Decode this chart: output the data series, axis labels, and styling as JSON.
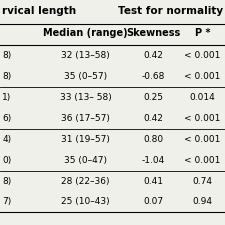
{
  "title_left": "rvical length",
  "title_right": "Test for normality",
  "col_headers": [
    "Median (range)",
    "Skewness",
    "P *"
  ],
  "left_col_partial": [
    "8)",
    "8)",
    "1)",
    "6)",
    "4)",
    "0)",
    "8)",
    "7)"
  ],
  "rows": [
    [
      "32 (13–58)",
      "0.42",
      "< 0.001"
    ],
    [
      "35 (0–57)",
      "-0.68",
      "< 0.001"
    ],
    [
      "33 (13– 58)",
      "0.25",
      "0.014"
    ],
    [
      "36 (17–57)",
      "0.42",
      "< 0.001"
    ],
    [
      "31 (19–57)",
      "0.80",
      "< 0.001"
    ],
    [
      "35 (0–47)",
      "-1.04",
      "< 0.001"
    ],
    [
      "28 (22–36)",
      "0.41",
      "0.74"
    ],
    [
      "25 (10–43)",
      "0.07",
      "0.94"
    ]
  ],
  "group_dividers_after": [
    1,
    3,
    5
  ],
  "background_color": "#f0f0eb",
  "fontsize": 6.5,
  "header_fontsize": 7.0,
  "title_fontsize": 7.5
}
